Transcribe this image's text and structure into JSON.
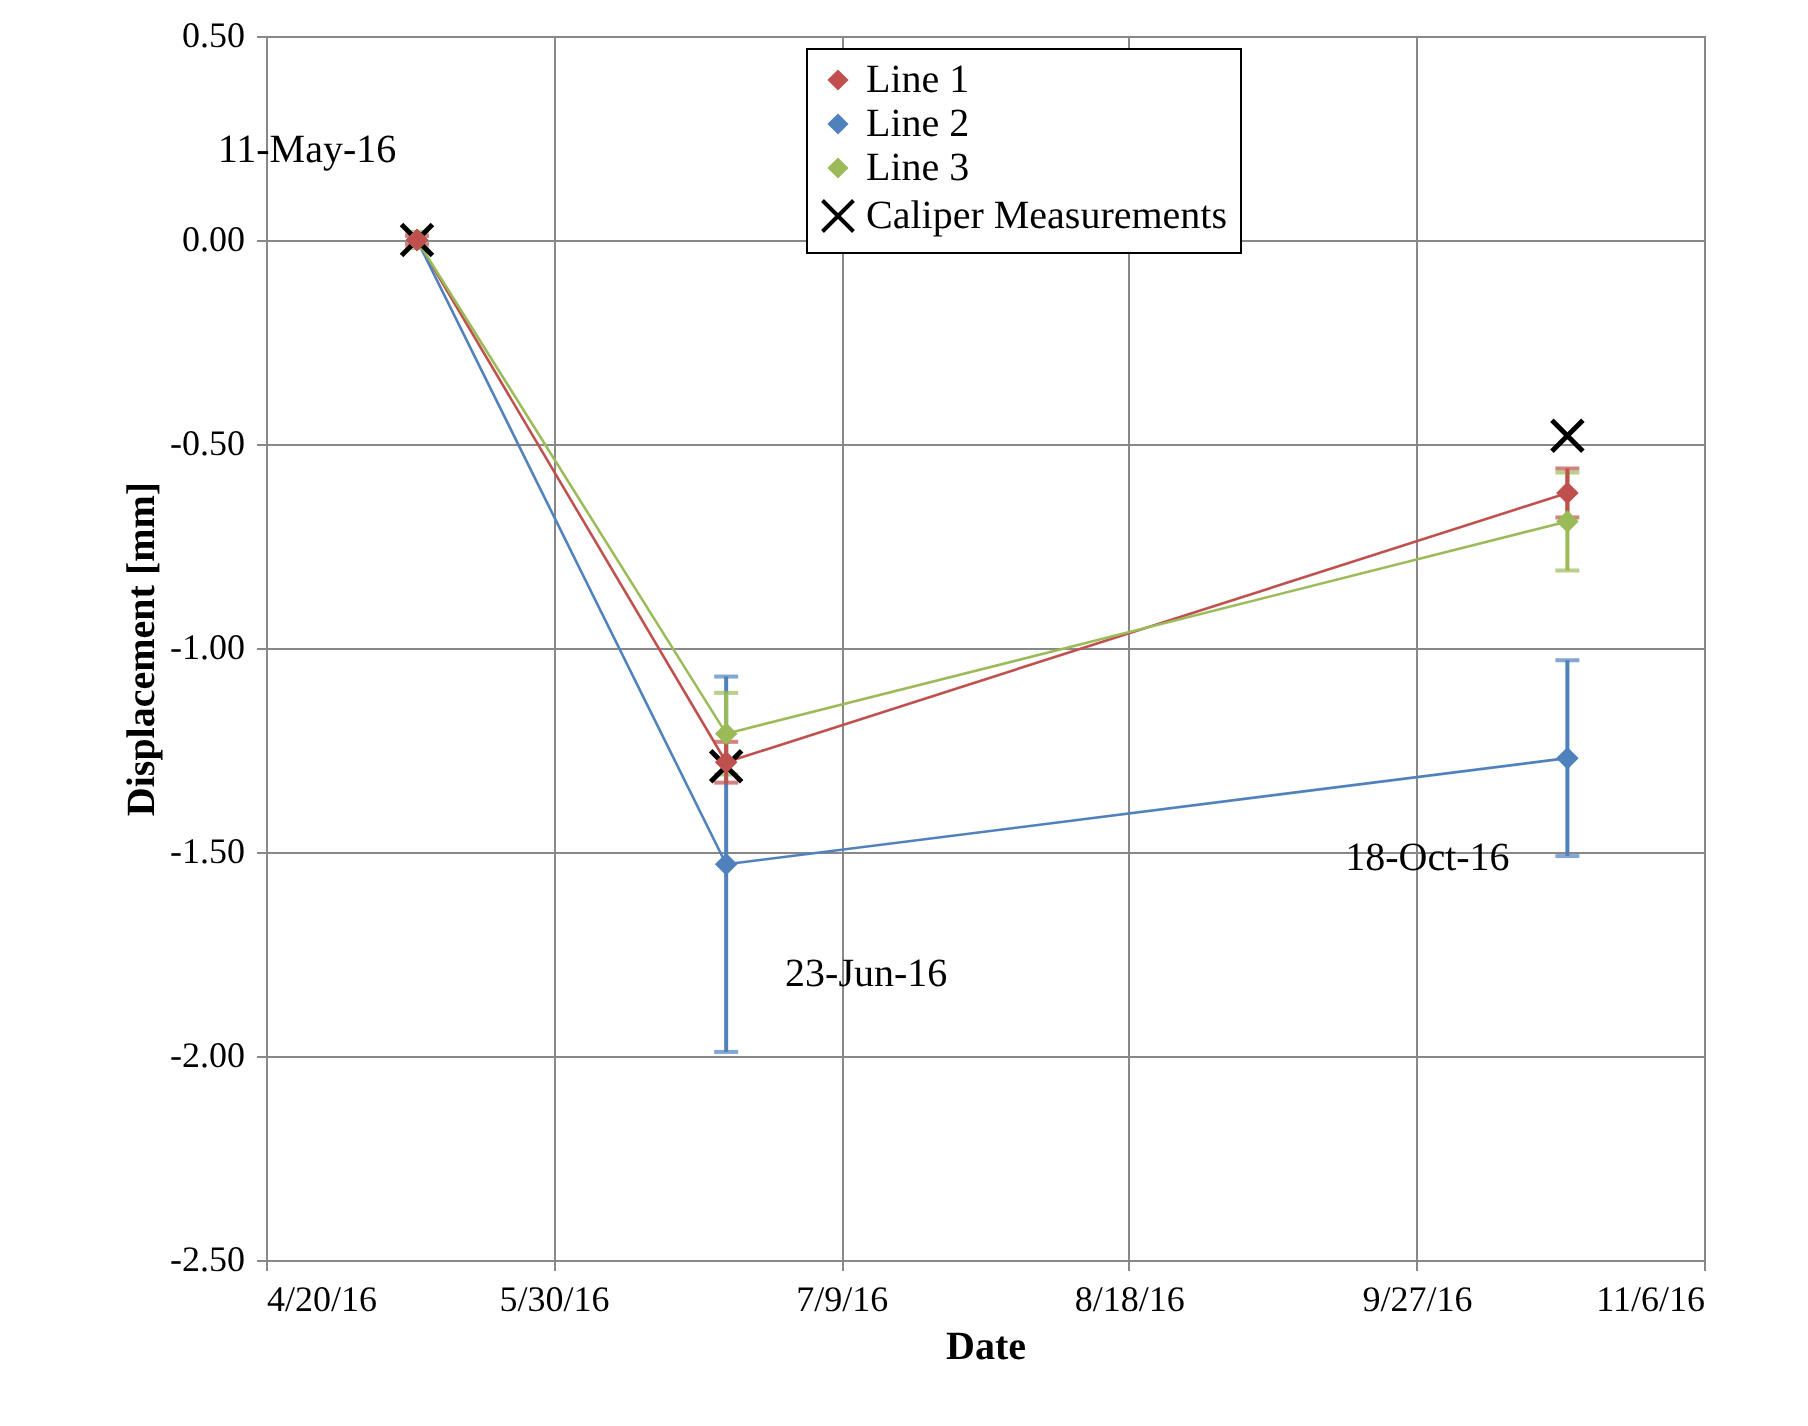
{
  "chart_data": {
    "type": "line",
    "xlabel": "Date",
    "ylabel": "Displacement [mm]",
    "x": [
      "2016-05-11",
      "2016-06-23",
      "2016-10-18"
    ],
    "series": [
      {
        "name": "Line 1",
        "color": "#c0504d",
        "values": [
          0,
          -1.28,
          -0.62
        ],
        "errors": [
          0.01,
          0.05,
          0.06
        ]
      },
      {
        "name": "Line 2",
        "color": "#4f81bd",
        "values": [
          0,
          -1.53,
          -1.27
        ],
        "errors": [
          null,
          0.46,
          0.24
        ]
      },
      {
        "name": "Line 3",
        "color": "#9bbb59",
        "values": [
          0,
          -1.21,
          -0.69
        ],
        "errors": [
          0.02,
          0.1,
          0.12
        ]
      },
      {
        "name": "Caliper Measurements",
        "type": "scatter",
        "marker": "cross",
        "color": "#000000",
        "values": [
          0,
          -1.29,
          -0.48
        ]
      }
    ],
    "marker": "diamond",
    "xlim": [
      "2016-04-20",
      "2016-11-06"
    ],
    "xticks": [
      {
        "value": "2016-04-20",
        "label": "4/20/16"
      },
      {
        "value": "2016-05-30",
        "label": "5/30/16"
      },
      {
        "value": "2016-07-09",
        "label": "7/9/16"
      },
      {
        "value": "2016-08-18",
        "label": "8/18/16"
      },
      {
        "value": "2016-09-27",
        "label": "9/27/16"
      },
      {
        "value": "2016-11-06",
        "label": "11/6/16"
      }
    ],
    "ylim": [
      -2.5,
      0.5
    ],
    "yticks": [
      {
        "value": -2.5,
        "label": "-2.50"
      },
      {
        "value": -2,
        "label": "-2.00"
      },
      {
        "value": -1.5,
        "label": "-1.50"
      },
      {
        "value": -1,
        "label": "-1.00"
      },
      {
        "value": -0.5,
        "label": "-0.50"
      },
      {
        "value": 0,
        "label": "0.00"
      },
      {
        "value": 0.5,
        "label": "0.50"
      }
    ],
    "annotations": [
      {
        "text": "11-May-16",
        "x": "2016-05-11",
        "y": 0
      },
      {
        "text": "23-Jun-16",
        "x": "2016-06-23",
        "y": -1.53
      },
      {
        "text": "18-Oct-16",
        "x": "2016-10-18",
        "y": -1.27
      }
    ],
    "grid": true,
    "legend": "top"
  }
}
